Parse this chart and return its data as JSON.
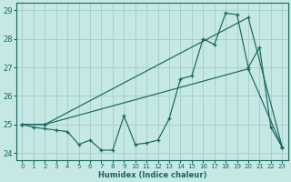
{
  "xlabel": "Humidex (Indice chaleur)",
  "ylabel": "",
  "bg_color": "#c5e8e5",
  "grid_color": "#a8d0cc",
  "line_color": "#1a6660",
  "xlim": [
    -0.5,
    23.5
  ],
  "ylim": [
    23.75,
    29.25
  ],
  "yticks": [
    24,
    25,
    26,
    27,
    28,
    29
  ],
  "xticks": [
    0,
    1,
    2,
    3,
    4,
    5,
    6,
    7,
    8,
    9,
    10,
    11,
    12,
    13,
    14,
    15,
    16,
    17,
    18,
    19,
    20,
    21,
    22,
    23
  ],
  "line1_x": [
    0,
    1,
    2,
    3,
    4,
    5,
    6,
    7,
    8,
    9,
    10,
    11,
    12,
    13,
    14,
    15,
    16,
    17,
    18,
    19,
    20,
    21,
    22,
    23
  ],
  "line1_y": [
    25.0,
    24.9,
    24.85,
    24.8,
    24.75,
    24.3,
    24.45,
    24.1,
    24.1,
    25.3,
    24.3,
    24.35,
    24.45,
    25.2,
    26.6,
    26.7,
    28.0,
    27.8,
    28.9,
    28.85,
    27.0,
    27.7,
    24.9,
    24.2
  ],
  "line2_x": [
    0,
    2,
    20,
    23
  ],
  "line2_y": [
    25.0,
    25.0,
    26.95,
    24.2
  ],
  "line3_x": [
    0,
    2,
    20,
    23
  ],
  "line3_y": [
    25.0,
    25.0,
    28.75,
    24.2
  ]
}
